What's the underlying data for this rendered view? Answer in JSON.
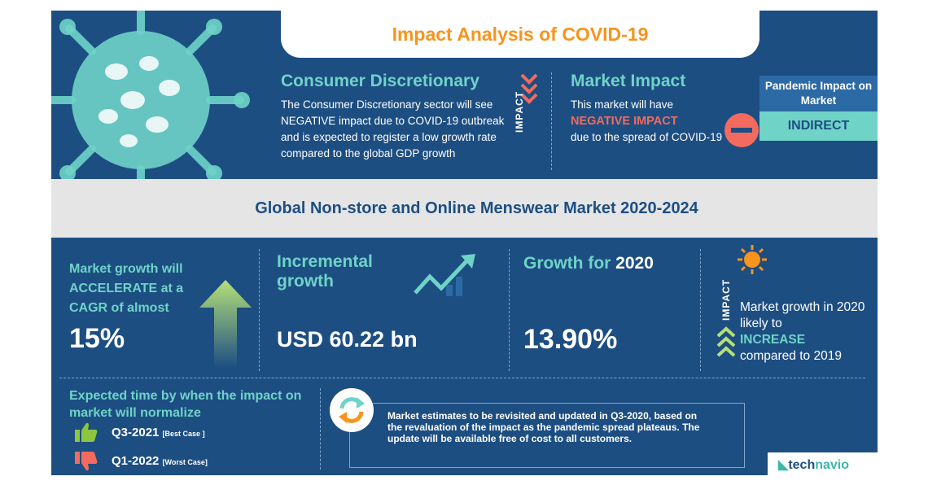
{
  "title": "Impact Analysis of COVID-19",
  "consumer": {
    "heading": "Consumer Discretionary",
    "body": "The Consumer Discretionary sector will see NEGATIVE impact due to COVID-19 outbreak and is expected to register a low growth rate compared to the global GDP growth",
    "impact_label": "IMPACT"
  },
  "market_impact": {
    "heading": "Market Impact",
    "line1": "This market will have",
    "highlight": "NEGATIVE IMPACT",
    "line2": "due to the spread of COVID-19"
  },
  "pandemic": {
    "label": "Pandemic Impact on Market",
    "value": "INDIRECT"
  },
  "market_title": "Global Non-store and Online Menswear Market 2020-2024",
  "cagr": {
    "text": "Market growth will ACCELERATE at a CAGR of almost",
    "value": "15%"
  },
  "incremental": {
    "text": "Incremental growth",
    "value": "USD 60.22 bn"
  },
  "growth2020": {
    "label": "Growth for",
    "year": "2020",
    "value": "13.90%"
  },
  "outlook": {
    "impact_label": "IMPACT",
    "line1": "Market growth in 2020 likely to",
    "highlight": "INCREASE",
    "line2": "compared to 2019"
  },
  "normalize": {
    "text": "Expected time by when the impact on market will normalize",
    "best": "Q3-2021",
    "best_tag": "[Best Case ]",
    "worst": "Q1-2022",
    "worst_tag": "[Worst Case]"
  },
  "note": "Market estimates to be revisited and updated in Q3-2020, based on the revaluation of the impact as the pandemic spread plateaus. The update will be available free of cost to all customers.",
  "brand": {
    "part1": "tech",
    "part2": "navio"
  },
  "colors": {
    "navy": "#1d4e82",
    "teal": "#6fd3c8",
    "orange": "#f7941d",
    "red": "#f26b5e",
    "grey": "#e5e5e5"
  }
}
